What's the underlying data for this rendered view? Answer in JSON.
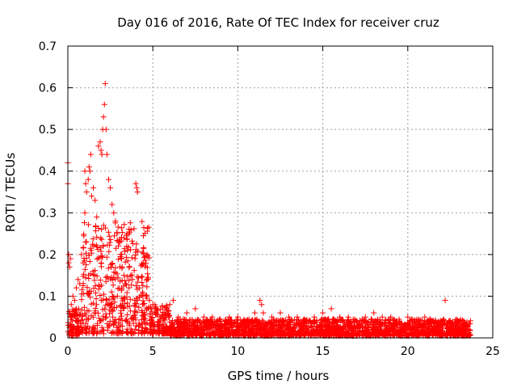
{
  "chart_data": {
    "type": "scatter",
    "title": "Day 016 of 2016, Rate Of TEC Index for receiver cruz",
    "xlabel": "GPS time / hours",
    "ylabel": "ROTI / TECUs",
    "xlim": [
      0,
      25
    ],
    "ylim": [
      0,
      0.7
    ],
    "xticks": [
      0,
      5,
      10,
      15,
      20,
      25
    ],
    "yticks": [
      0,
      0.1,
      0.2,
      0.3,
      0.4,
      0.5,
      0.6,
      0.7
    ],
    "xtick_labels": [
      "0",
      "5",
      "10",
      "15",
      "20",
      "25"
    ],
    "ytick_labels": [
      "0",
      "0.1",
      "0.2",
      "0.3",
      "0.4",
      "0.5",
      "0.6",
      "0.7"
    ],
    "grid": true,
    "marker": "+",
    "color": "#ff0000",
    "series": [
      {
        "name": "ROTI",
        "points": [
          [
            0.0,
            0.37
          ],
          [
            0.0,
            0.42
          ],
          [
            0.05,
            0.2
          ],
          [
            0.05,
            0.18
          ],
          [
            0.1,
            0.17
          ],
          [
            0.15,
            0.19
          ],
          [
            0.2,
            0.08
          ],
          [
            0.3,
            0.1
          ],
          [
            0.4,
            0.09
          ],
          [
            0.5,
            0.12
          ],
          [
            0.6,
            0.14
          ],
          [
            0.7,
            0.13
          ],
          [
            0.8,
            0.2
          ],
          [
            0.9,
            0.18
          ],
          [
            1.0,
            0.3
          ],
          [
            1.0,
            0.4
          ],
          [
            1.05,
            0.37
          ],
          [
            1.1,
            0.35
          ],
          [
            1.2,
            0.38
          ],
          [
            1.25,
            0.41
          ],
          [
            1.3,
            0.4
          ],
          [
            1.35,
            0.44
          ],
          [
            1.4,
            0.34
          ],
          [
            1.5,
            0.36
          ],
          [
            1.6,
            0.33
          ],
          [
            1.7,
            0.29
          ],
          [
            1.8,
            0.46
          ],
          [
            1.9,
            0.47
          ],
          [
            1.95,
            0.45
          ],
          [
            2.0,
            0.44
          ],
          [
            2.05,
            0.5
          ],
          [
            2.1,
            0.53
          ],
          [
            2.15,
            0.56
          ],
          [
            2.2,
            0.61
          ],
          [
            2.25,
            0.5
          ],
          [
            2.3,
            0.44
          ],
          [
            2.4,
            0.38
          ],
          [
            2.5,
            0.36
          ],
          [
            2.6,
            0.32
          ],
          [
            2.7,
            0.3
          ],
          [
            2.8,
            0.28
          ],
          [
            2.9,
            0.25
          ],
          [
            3.0,
            0.23
          ],
          [
            3.1,
            0.2
          ],
          [
            3.2,
            0.17
          ],
          [
            3.3,
            0.15
          ],
          [
            3.4,
            0.13
          ],
          [
            3.6,
            0.12
          ],
          [
            3.8,
            0.14
          ],
          [
            4.0,
            0.37
          ],
          [
            4.05,
            0.36
          ],
          [
            4.1,
            0.35
          ],
          [
            4.2,
            0.12
          ],
          [
            4.4,
            0.11
          ],
          [
            4.6,
            0.1
          ],
          [
            4.8,
            0.09
          ],
          [
            5.0,
            0.08
          ],
          [
            5.2,
            0.06
          ],
          [
            5.5,
            0.05
          ],
          [
            6.0,
            0.08
          ],
          [
            6.2,
            0.09
          ],
          [
            6.5,
            0.05
          ],
          [
            7.0,
            0.06
          ],
          [
            7.5,
            0.07
          ],
          [
            8.0,
            0.05
          ],
          [
            8.5,
            0.05
          ],
          [
            9.0,
            0.04
          ],
          [
            9.5,
            0.05
          ],
          [
            10.0,
            0.05
          ],
          [
            10.5,
            0.04
          ],
          [
            11.0,
            0.06
          ],
          [
            11.3,
            0.09
          ],
          [
            11.4,
            0.08
          ],
          [
            11.5,
            0.06
          ],
          [
            12.0,
            0.05
          ],
          [
            12.5,
            0.06
          ],
          [
            13.0,
            0.05
          ],
          [
            13.5,
            0.05
          ],
          [
            14.0,
            0.04
          ],
          [
            14.5,
            0.05
          ],
          [
            15.0,
            0.06
          ],
          [
            15.5,
            0.07
          ],
          [
            16.0,
            0.05
          ],
          [
            16.5,
            0.05
          ],
          [
            17.0,
            0.04
          ],
          [
            17.5,
            0.05
          ],
          [
            18.0,
            0.06
          ],
          [
            18.5,
            0.05
          ],
          [
            19.0,
            0.05
          ],
          [
            19.5,
            0.04
          ],
          [
            20.0,
            0.05
          ],
          [
            20.5,
            0.04
          ],
          [
            21.0,
            0.05
          ],
          [
            21.5,
            0.04
          ],
          [
            22.0,
            0.04
          ],
          [
            22.2,
            0.09
          ],
          [
            22.5,
            0.04
          ],
          [
            23.0,
            0.04
          ],
          [
            23.5,
            0.03
          ]
        ],
        "background_bands": [
          {
            "x_start": 0.0,
            "x_end": 0.8,
            "y_min": 0.005,
            "y_max": 0.07
          },
          {
            "x_start": 0.8,
            "x_end": 4.8,
            "y_min": 0.01,
            "y_max": 0.28
          },
          {
            "x_start": 4.8,
            "x_end": 6.0,
            "y_min": 0.01,
            "y_max": 0.08
          },
          {
            "x_start": 6.0,
            "x_end": 23.7,
            "y_min": 0.005,
            "y_max": 0.045
          }
        ]
      }
    ]
  }
}
